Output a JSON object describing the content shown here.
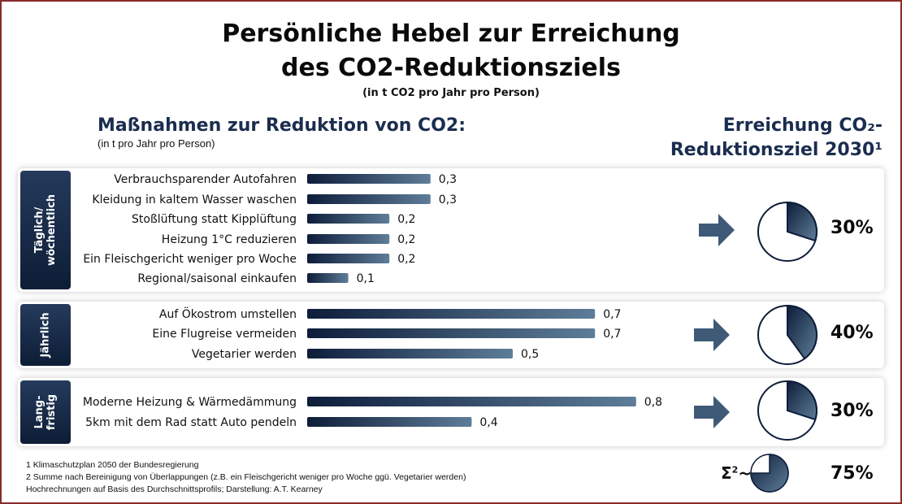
{
  "title_line1": "Persönliche Hebel zur Erreichung",
  "title_line2": "des CO2-Reduktionsziels",
  "subtitle": "(in t CO2 pro Jahr pro Person)",
  "measures_heading": "Maßnahmen zur Reduktion von CO2:",
  "measures_unit": "(in t pro Jahr pro Person)",
  "goal_heading_line1": "Erreichung CO₂-",
  "goal_heading_line2": "Reduktionsziel 2030¹",
  "groups": [
    {
      "label": "Täglich/\nwöchentlich",
      "goal_percent": "30%"
    },
    {
      "label": "Jährlich",
      "goal_percent": "40%"
    },
    {
      "label": "Lang-\nfristig",
      "goal_percent": "30%"
    }
  ],
  "sum": {
    "symbol": "Σ",
    "superscript": "2",
    "tilde": "~",
    "percent": "75%",
    "fraction": 0.75
  },
  "footnotes": [
    "1 Klimaschutzplan 2050 der Bundesregierung",
    "2 Summe nach Bereinigung von Überlappungen (z.B. ein Fleischgericht weniger pro Woche ggü. Vegetarier werden)",
    "Hochrechnungen auf Basis des Durchschnittsprofils; Darstellung: A.T. Kearney"
  ],
  "colors": {
    "bar_dark": "#0d1d3a",
    "bar_light": "#5e7d98",
    "pie_light": "#ffffff",
    "side_label": "#1b2d4f",
    "arrow": "#3e5a77",
    "border": "#8b2a2a"
  },
  "chart_data": {
    "type": "bar",
    "orientation": "horizontal",
    "unit": "t CO2 pro Jahr pro Person",
    "groups": [
      {
        "name": "Täglich/wöchentlich",
        "categories": [
          "Verbrauchsparender Autofahren",
          "Kleidung in kaltem Wasser waschen",
          "Stoßlüftung statt Kipplüftung",
          "Heizung 1°C reduzieren",
          "Ein Fleischgericht weniger pro Woche",
          "Regional/saisonal einkaufen"
        ],
        "values": [
          0.3,
          0.3,
          0.2,
          0.2,
          0.2,
          0.1
        ],
        "labels": [
          "0,3",
          "0,3",
          "0,2",
          "0,2",
          "0,2",
          "0,1"
        ],
        "goal_fraction": 0.3
      },
      {
        "name": "Jährlich",
        "categories": [
          "Auf Ökostrom umstellen",
          "Eine Flugreise vermeiden",
          "Vegetarier werden"
        ],
        "values": [
          0.7,
          0.7,
          0.5
        ],
        "labels": [
          "0,7",
          "0,7",
          "0,5"
        ],
        "goal_fraction": 0.4
      },
      {
        "name": "Langfristig",
        "categories": [
          "Moderne Heizung & Wärmedämmung",
          "5km mit dem Rad statt Auto pendeln"
        ],
        "values": [
          0.8,
          0.4
        ],
        "labels": [
          "0,8",
          "0,4"
        ],
        "goal_fraction": 0.3
      }
    ]
  }
}
